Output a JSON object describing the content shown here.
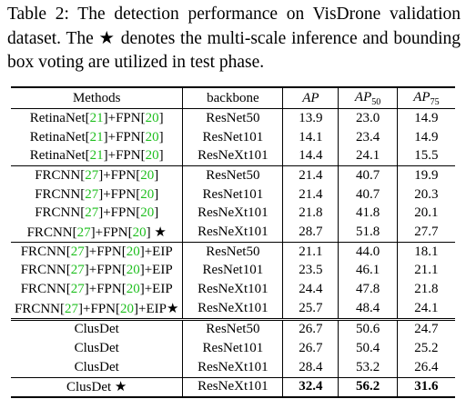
{
  "caption": "Table 2: The detection performance on VisDrone validation dataset. The ★ denotes the multi-scale inference and bounding box voting are utilized in test phase.",
  "headers": {
    "methods": "Methods",
    "backbone": "backbone",
    "ap": "AP",
    "ap50_base": "AP",
    "ap50_sub": "50",
    "ap75_base": "AP",
    "ap75_sub": "75"
  },
  "rows": [
    {
      "p1": "RetinaNet[",
      "r1": "21",
      "p2": "]+FPN[",
      "r2": "20",
      "p3": "]",
      "p4": "",
      "backbone": "ResNet50",
      "ap": "13.9",
      "ap50": "23.0",
      "ap75": "14.9"
    },
    {
      "p1": "RetinaNet[",
      "r1": "21",
      "p2": "]+FPN[",
      "r2": "20",
      "p3": "]",
      "p4": "",
      "backbone": "ResNet101",
      "ap": "14.1",
      "ap50": "23.4",
      "ap75": "14.9"
    },
    {
      "p1": "RetinaNet[",
      "r1": "21",
      "p2": "]+FPN[",
      "r2": "20",
      "p3": "]",
      "p4": "",
      "backbone": "ResNeXt101",
      "ap": "14.4",
      "ap50": "24.1",
      "ap75": "15.5"
    },
    {
      "p1": "FRCNN[",
      "r1": "27",
      "p2": "]+FPN[",
      "r2": "20",
      "p3": "]",
      "p4": "",
      "backbone": "ResNet50",
      "ap": "21.4",
      "ap50": "40.7",
      "ap75": "19.9"
    },
    {
      "p1": "FRCNN[",
      "r1": "27",
      "p2": "]+FPN[",
      "r2": "20",
      "p3": "]",
      "p4": "",
      "backbone": "ResNet101",
      "ap": "21.4",
      "ap50": "40.7",
      "ap75": "20.3"
    },
    {
      "p1": "FRCNN[",
      "r1": "27",
      "p2": "]+FPN[",
      "r2": "20",
      "p3": "]",
      "p4": "",
      "backbone": "ResNeXt101",
      "ap": "21.8",
      "ap50": "41.8",
      "ap75": "20.1"
    },
    {
      "p1": "FRCNN[",
      "r1": "27",
      "p2": "]+FPN[",
      "r2": "20",
      "p3": "] ★",
      "p4": "",
      "backbone": "ResNeXt101",
      "ap": "28.7",
      "ap50": "51.8",
      "ap75": "27.7"
    },
    {
      "p1": "FRCNN[",
      "r1": "27",
      "p2": "]+FPN[",
      "r2": "20",
      "p3": "]+EIP",
      "p4": "",
      "backbone": "ResNet50",
      "ap": "21.1",
      "ap50": "44.0",
      "ap75": "18.1"
    },
    {
      "p1": "FRCNN[",
      "r1": "27",
      "p2": "]+FPN[",
      "r2": "20",
      "p3": "]+EIP",
      "p4": "",
      "backbone": "ResNet101",
      "ap": "23.5",
      "ap50": "46.1",
      "ap75": "21.1"
    },
    {
      "p1": "FRCNN[",
      "r1": "27",
      "p2": "]+FPN[",
      "r2": "20",
      "p3": "]+EIP",
      "p4": "",
      "backbone": "ResNeXt101",
      "ap": "24.4",
      "ap50": "47.8",
      "ap75": "21.8"
    },
    {
      "p1": "FRCNN[",
      "r1": "27",
      "p2": "]+FPN[",
      "r2": "20",
      "p3": "]+EIP★",
      "p4": "",
      "backbone": "ResNeXt101",
      "ap": "25.7",
      "ap50": "48.4",
      "ap75": "24.1"
    }
  ],
  "clusdet": [
    {
      "method": "ClusDet",
      "backbone": "ResNet50",
      "ap": "26.7",
      "ap50": "50.6",
      "ap75": "24.7"
    },
    {
      "method": "ClusDet",
      "backbone": "ResNet101",
      "ap": "26.7",
      "ap50": "50.4",
      "ap75": "25.2"
    },
    {
      "method": "ClusDet",
      "backbone": "ResNeXt101",
      "ap": "28.4",
      "ap50": "53.2",
      "ap75": "26.4"
    },
    {
      "method": "ClusDet ★",
      "backbone": "ResNeXt101",
      "ap": "32.4",
      "ap50": "56.2",
      "ap75": "31.6"
    }
  ],
  "ref_color": "#1fbf1f"
}
